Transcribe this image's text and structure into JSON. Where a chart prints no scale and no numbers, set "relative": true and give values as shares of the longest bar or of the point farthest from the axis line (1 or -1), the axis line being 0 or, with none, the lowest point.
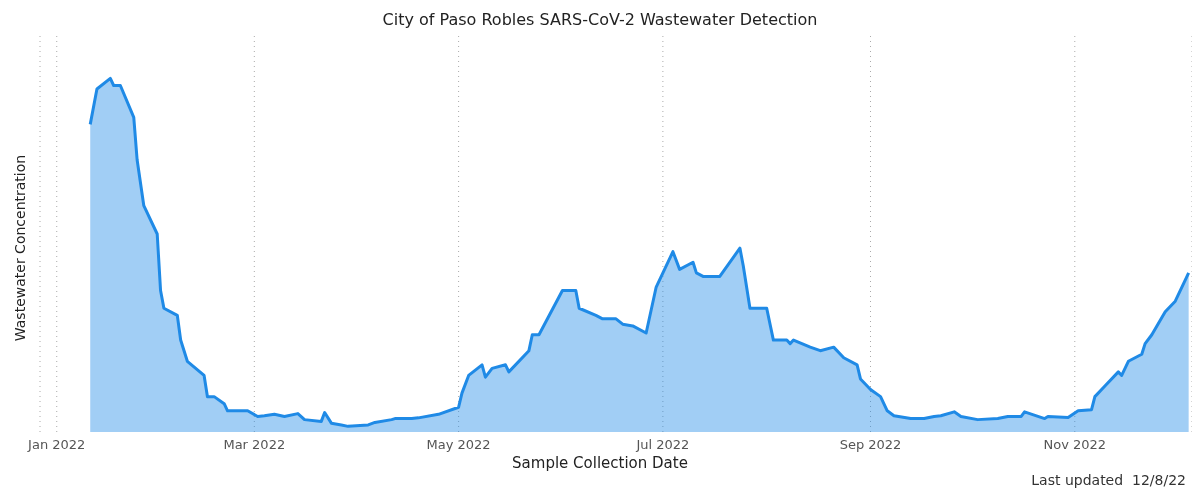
{
  "chart_data": {
    "type": "area",
    "title": "City of Paso Robles SARS-CoV-2 Wastewater Detection",
    "xlabel": "Sample Collection Date",
    "ylabel": "Wastewater Concentration",
    "annotations": [
      "Last updated  12/8/22"
    ],
    "relative": true,
    "grid": "x",
    "legend": false,
    "xlim": [
      "2021-12-27",
      "2022-12-06"
    ],
    "xticks": [
      {
        "value": "2022-01-01",
        "label": "Jan 2022"
      },
      {
        "value": "2022-03-01",
        "label": "Mar 2022"
      },
      {
        "value": "2022-05-01",
        "label": "May 2022"
      },
      {
        "value": "2022-07-01",
        "label": "Jul 2022"
      },
      {
        "value": "2022-09-01",
        "label": "Sep 2022"
      },
      {
        "value": "2022-11-01",
        "label": "Nov 2022"
      }
    ],
    "x": [
      "2022-01-11",
      "2022-01-13",
      "2022-01-17",
      "2022-01-18",
      "2022-01-20",
      "2022-01-24",
      "2022-01-25",
      "2022-01-27",
      "2022-01-31",
      "2022-02-01",
      "2022-02-02",
      "2022-02-06",
      "2022-02-07",
      "2022-02-09",
      "2022-02-14",
      "2022-02-15",
      "2022-02-17",
      "2022-02-20",
      "2022-02-21",
      "2022-02-27",
      "2022-03-02",
      "2022-03-04",
      "2022-03-07",
      "2022-03-10",
      "2022-03-14",
      "2022-03-16",
      "2022-03-21",
      "2022-03-22",
      "2022-03-24",
      "2022-03-27",
      "2022-03-29",
      "2022-04-04",
      "2022-04-06",
      "2022-04-11",
      "2022-04-12",
      "2022-04-17",
      "2022-04-19",
      "2022-04-25",
      "2022-05-01",
      "2022-05-02",
      "2022-05-04",
      "2022-05-08",
      "2022-05-09",
      "2022-05-11",
      "2022-05-15",
      "2022-05-16",
      "2022-05-22",
      "2022-05-23",
      "2022-05-25",
      "2022-06-01",
      "2022-06-05",
      "2022-06-06",
      "2022-06-11",
      "2022-06-13",
      "2022-06-17",
      "2022-06-19",
      "2022-06-22",
      "2022-06-26",
      "2022-06-29",
      "2022-07-04",
      "2022-07-06",
      "2022-07-10",
      "2022-07-11",
      "2022-07-13",
      "2022-07-18",
      "2022-07-24",
      "2022-07-25",
      "2022-07-27",
      "2022-08-01",
      "2022-08-03",
      "2022-08-07",
      "2022-08-08",
      "2022-08-09",
      "2022-08-14",
      "2022-08-17",
      "2022-08-21",
      "2022-08-24",
      "2022-08-28",
      "2022-08-29",
      "2022-09-01",
      "2022-09-04",
      "2022-09-06",
      "2022-09-08",
      "2022-09-13",
      "2022-09-17",
      "2022-09-20",
      "2022-09-22",
      "2022-09-26",
      "2022-09-28",
      "2022-10-03",
      "2022-10-09",
      "2022-10-12",
      "2022-10-16",
      "2022-10-17",
      "2022-10-23",
      "2022-10-24",
      "2022-10-30",
      "2022-11-01",
      "2022-11-02",
      "2022-11-06",
      "2022-11-07",
      "2022-11-10",
      "2022-11-14",
      "2022-11-15",
      "2022-11-17",
      "2022-11-21",
      "2022-11-22",
      "2022-11-24",
      "2022-11-28",
      "2022-12-01",
      "2022-12-05"
    ],
    "series": [
      {
        "color": "#1f8ae6",
        "values": [
          0.87,
          0.97,
          1.0,
          0.98,
          0.98,
          0.89,
          0.77,
          0.64,
          0.56,
          0.4,
          0.35,
          0.33,
          0.26,
          0.2,
          0.16,
          0.1,
          0.1,
          0.08,
          0.06,
          0.06,
          0.044,
          0.046,
          0.05,
          0.044,
          0.052,
          0.035,
          0.03,
          0.055,
          0.025,
          0.02,
          0.016,
          0.02,
          0.027,
          0.035,
          0.038,
          0.038,
          0.04,
          0.05,
          0.07,
          0.11,
          0.16,
          0.19,
          0.155,
          0.18,
          0.19,
          0.17,
          0.23,
          0.275,
          0.275,
          0.4,
          0.4,
          0.35,
          0.33,
          0.32,
          0.32,
          0.305,
          0.3,
          0.28,
          0.41,
          0.51,
          0.46,
          0.48,
          0.45,
          0.44,
          0.44,
          0.52,
          0.47,
          0.35,
          0.35,
          0.26,
          0.26,
          0.25,
          0.26,
          0.24,
          0.23,
          0.24,
          0.21,
          0.19,
          0.15,
          0.12,
          0.1,
          0.06,
          0.046,
          0.038,
          0.038,
          0.044,
          0.046,
          0.057,
          0.044,
          0.035,
          0.038,
          0.044,
          0.044,
          0.057,
          0.038,
          0.044,
          0.041,
          0.054,
          0.06,
          0.063,
          0.1,
          0.13,
          0.17,
          0.16,
          0.2,
          0.22,
          0.25,
          0.275,
          0.34,
          0.37,
          0.45
        ]
      }
    ]
  }
}
